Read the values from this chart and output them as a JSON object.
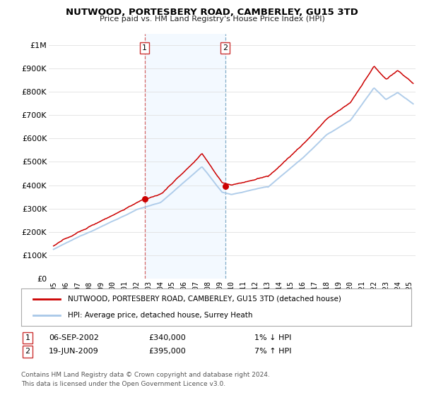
{
  "title": "NUTWOOD, PORTESBERY ROAD, CAMBERLEY, GU15 3TD",
  "subtitle": "Price paid vs. HM Land Registry's House Price Index (HPI)",
  "legend_line1": "NUTWOOD, PORTESBERY ROAD, CAMBERLEY, GU15 3TD (detached house)",
  "legend_line2": "HPI: Average price, detached house, Surrey Heath",
  "transaction1_date": "06-SEP-2002",
  "transaction1_price": "£340,000",
  "transaction1_hpi": "1% ↓ HPI",
  "transaction2_date": "19-JUN-2009",
  "transaction2_price": "£395,000",
  "transaction2_hpi": "7% ↑ HPI",
  "footnote1": "Contains HM Land Registry data © Crown copyright and database right 2024.",
  "footnote2": "This data is licensed under the Open Government Licence v3.0.",
  "hpi_color": "#a8c8e8",
  "price_color": "#cc0000",
  "marker_color": "#cc0000",
  "shade_color": "#ddeeff",
  "vline1_color": "#cc4444",
  "vline2_color": "#6699bb",
  "ylim": [
    0,
    1050000
  ],
  "yticks": [
    0,
    100000,
    200000,
    300000,
    400000,
    500000,
    600000,
    700000,
    800000,
    900000,
    1000000
  ],
  "ytick_labels": [
    "£0",
    "£100K",
    "£200K",
    "£300K",
    "£400K",
    "£500K",
    "£600K",
    "£700K",
    "£800K",
    "£900K",
    "£1M"
  ],
  "xlim_start": 1994.6,
  "xlim_end": 2025.5,
  "xtick_years": [
    1995,
    1996,
    1997,
    1998,
    1999,
    2000,
    2001,
    2002,
    2003,
    2004,
    2005,
    2006,
    2007,
    2008,
    2009,
    2010,
    2011,
    2012,
    2013,
    2014,
    2015,
    2016,
    2017,
    2018,
    2019,
    2020,
    2021,
    2022,
    2023,
    2024,
    2025
  ],
  "transaction1_x": 2002.68,
  "transaction1_y": 340000,
  "transaction2_x": 2009.46,
  "transaction2_y": 395000,
  "background_color": "#ffffff",
  "grid_color": "#e0e0e0"
}
